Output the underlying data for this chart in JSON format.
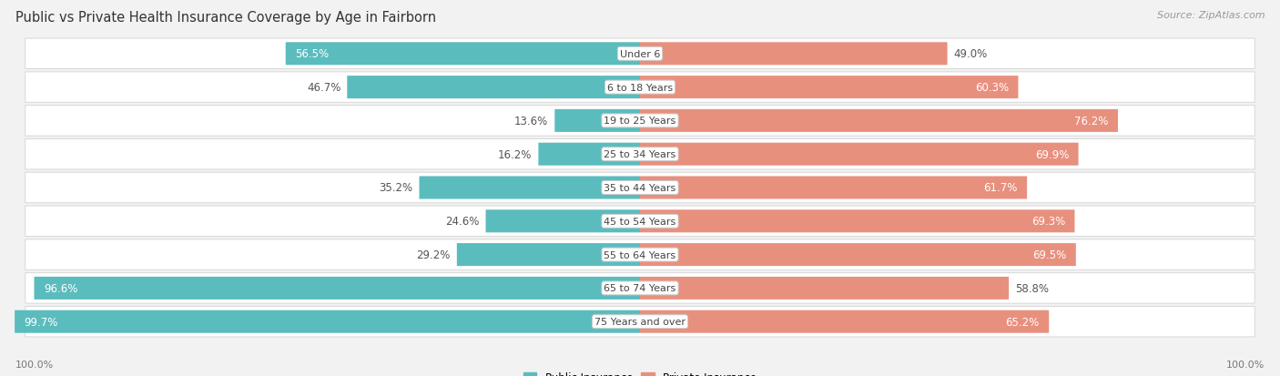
{
  "title": "Public vs Private Health Insurance Coverage by Age in Fairborn",
  "source": "Source: ZipAtlas.com",
  "categories": [
    "Under 6",
    "6 to 18 Years",
    "19 to 25 Years",
    "25 to 34 Years",
    "35 to 44 Years",
    "45 to 54 Years",
    "55 to 64 Years",
    "65 to 74 Years",
    "75 Years and over"
  ],
  "public_values": [
    56.5,
    46.7,
    13.6,
    16.2,
    35.2,
    24.6,
    29.2,
    96.6,
    99.7
  ],
  "private_values": [
    49.0,
    60.3,
    76.2,
    69.9,
    61.7,
    69.3,
    69.5,
    58.8,
    65.2
  ],
  "public_color": "#5bbcbe",
  "private_color": "#e8907e",
  "public_label": "Public Insurance",
  "private_label": "Private Insurance",
  "bg_color": "#f2f2f2",
  "row_bg_color": "#ffffff",
  "row_edge_color": "#d8d8d8",
  "max_val": 100.0,
  "axis_left_label": "100.0%",
  "axis_right_label": "100.0%",
  "title_fontsize": 10.5,
  "label_fontsize": 8.5,
  "category_fontsize": 8.0,
  "source_fontsize": 8.0
}
